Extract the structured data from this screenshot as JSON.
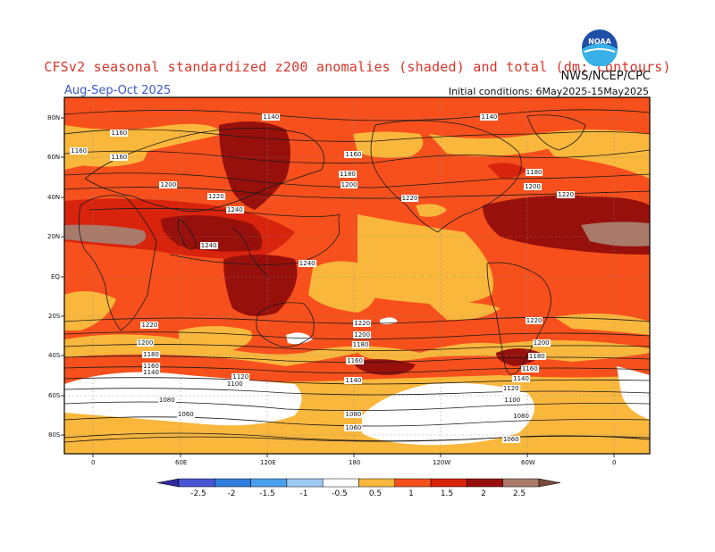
{
  "header": {
    "title": "CFSv2 seasonal standardized z200 anomalies (shaded) and total (dm; contours)",
    "season": "Aug-Sep-Oct 2025",
    "initial_conditions": "Initial conditions: 6May2025-15May2025",
    "agency": "NWS/NCEP/CPC",
    "logo_text": "NOAA"
  },
  "map": {
    "lat_labels": [
      "80N",
      "60N",
      "40N",
      "20N",
      "EQ",
      "20S",
      "40S",
      "60S",
      "80S"
    ],
    "lon_labels": [
      "0",
      "60E",
      "120E",
      "180",
      "120W",
      "60W",
      "0"
    ],
    "contour_labels": [
      {
        "text": "1140",
        "lon": 123,
        "lat": 80
      },
      {
        "text": "1140",
        "lon": -86,
        "lat": 80
      },
      {
        "text": "1160",
        "lon": 18,
        "lat": 72
      },
      {
        "text": "1160",
        "lon": 18,
        "lat": 60
      },
      {
        "text": "1160",
        "lon": 180,
        "lat": 61
      },
      {
        "text": "1160",
        "lon": -10,
        "lat": 63
      },
      {
        "text": "1180",
        "lon": 176,
        "lat": 51
      },
      {
        "text": "1180",
        "lon": -55,
        "lat": 52
      },
      {
        "text": "1200",
        "lon": 52,
        "lat": 46
      },
      {
        "text": "1200",
        "lon": 177,
        "lat": 46
      },
      {
        "text": "1200",
        "lon": -56,
        "lat": 45
      },
      {
        "text": "1220",
        "lon": 85,
        "lat": 40
      },
      {
        "text": "1220",
        "lon": -141,
        "lat": 39
      },
      {
        "text": "1220",
        "lon": -33,
        "lat": 41
      },
      {
        "text": "1240",
        "lon": 98,
        "lat": 33
      },
      {
        "text": "1240",
        "lon": 80,
        "lat": 15
      },
      {
        "text": "1240",
        "lon": 148,
        "lat": 6
      },
      {
        "text": "1220",
        "lon": 39,
        "lat": -25
      },
      {
        "text": "1220",
        "lon": 186,
        "lat": -24
      },
      {
        "text": "1220",
        "lon": -55,
        "lat": -23
      },
      {
        "text": "1200",
        "lon": 36,
        "lat": -34
      },
      {
        "text": "1200",
        "lon": 186,
        "lat": -30
      },
      {
        "text": "1200",
        "lon": -50,
        "lat": -34
      },
      {
        "text": "1180",
        "lon": 40,
        "lat": -40
      },
      {
        "text": "1180",
        "lon": 185,
        "lat": -35
      },
      {
        "text": "1180",
        "lon": -53,
        "lat": -41
      },
      {
        "text": "1160",
        "lon": 40,
        "lat": -46
      },
      {
        "text": "1160",
        "lon": -179,
        "lat": -43
      },
      {
        "text": "1160",
        "lon": -58,
        "lat": -47
      },
      {
        "text": "1140",
        "lon": 40,
        "lat": -49
      },
      {
        "text": "1140",
        "lon": 180,
        "lat": -53
      },
      {
        "text": "1140",
        "lon": -64,
        "lat": -52
      },
      {
        "text": "1120",
        "lon": 102,
        "lat": -51
      },
      {
        "text": "1120",
        "lon": -71,
        "lat": -57
      },
      {
        "text": "1100",
        "lon": 98,
        "lat": -55
      },
      {
        "text": "1100",
        "lon": -70,
        "lat": -63
      },
      {
        "text": "1080",
        "lon": 51,
        "lat": -63
      },
      {
        "text": "1080",
        "lon": 180,
        "lat": -70
      },
      {
        "text": "1080",
        "lon": -64,
        "lat": -71
      },
      {
        "text": "1060",
        "lon": 64,
        "lat": -70
      },
      {
        "text": "1060",
        "lon": 180,
        "lat": -77
      },
      {
        "text": "1060",
        "lon": -71,
        "lat": -83
      }
    ]
  },
  "colorbar": {
    "ticks": [
      "-2.5",
      "-2",
      "-1.5",
      "-1",
      "-0.5",
      "0.5",
      "1",
      "1.5",
      "2",
      "2.5"
    ],
    "colors": [
      "#2f2a9e",
      "#4a55d6",
      "#2f7ee0",
      "#4aa0ee",
      "#9ec9f4",
      "#ffffff",
      "#f9b73c",
      "#f7501c",
      "#d8230d",
      "#98100b",
      "#a97a6a",
      "#7a4a3c"
    ]
  }
}
